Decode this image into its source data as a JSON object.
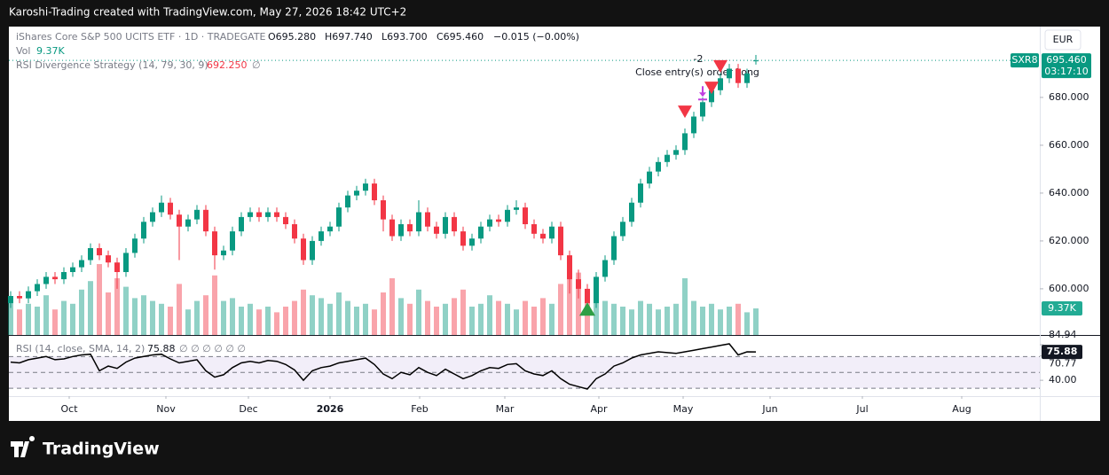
{
  "header": {
    "credit": "Karoshi-Trading created with TradingView.com, May 27, 2026 18:42 UTC+2"
  },
  "chart_data": {
    "type": "candlestick",
    "symbol": "iShares Core S&P 500 UCITS ETF · 1D · TRADEGATE",
    "ohlc_legend": [
      "O695.280",
      "H697.740",
      "L693.700",
      "C695.460",
      "−0.015 (−0.00%)"
    ],
    "volume_legend": {
      "name": "Vol",
      "value": "9.37K"
    },
    "strategy_legend": {
      "name": "RSI Divergence Strategy (14, 79, 30, 9)",
      "value": "692.250",
      "extra": "∅"
    },
    "currency": "EUR",
    "ticker": "SXR8",
    "last_price": {
      "value": 695.46,
      "label": "695.460"
    },
    "countdown": "03:17:10",
    "up_color": "#089981",
    "down_color": "#f23645",
    "candles": [
      [
        594,
        599,
        592,
        597
      ],
      [
        597,
        599,
        594,
        596
      ],
      [
        596,
        601,
        594,
        599
      ],
      [
        599,
        604,
        597,
        602
      ],
      [
        602,
        607,
        600,
        605
      ],
      [
        605,
        607,
        602,
        604
      ],
      [
        604,
        609,
        602,
        607
      ],
      [
        607,
        611,
        605,
        609
      ],
      [
        609,
        614,
        607,
        612
      ],
      [
        612,
        619,
        610,
        617
      ],
      [
        617,
        619,
        612,
        614
      ],
      [
        614,
        616,
        609,
        611
      ],
      [
        611,
        613,
        600,
        607
      ],
      [
        607,
        617,
        605,
        615
      ],
      [
        615,
        623,
        613,
        621
      ],
      [
        621,
        630,
        619,
        628
      ],
      [
        628,
        634,
        626,
        632
      ],
      [
        632,
        639,
        630,
        636
      ],
      [
        636,
        638,
        629,
        631
      ],
      [
        631,
        633,
        612,
        626
      ],
      [
        626,
        631,
        624,
        629
      ],
      [
        629,
        635,
        627,
        633
      ],
      [
        633,
        635,
        622,
        624
      ],
      [
        624,
        626,
        608,
        614
      ],
      [
        614,
        618,
        612,
        616
      ],
      [
        616,
        626,
        614,
        624
      ],
      [
        624,
        632,
        622,
        630
      ],
      [
        630,
        634,
        628,
        632
      ],
      [
        632,
        634,
        628,
        630
      ],
      [
        630,
        634,
        628,
        632
      ],
      [
        632,
        634,
        628,
        630
      ],
      [
        630,
        632,
        625,
        627
      ],
      [
        627,
        629,
        619,
        621
      ],
      [
        621,
        623,
        610,
        612
      ],
      [
        612,
        622,
        610,
        620
      ],
      [
        620,
        626,
        618,
        624
      ],
      [
        624,
        628,
        622,
        626
      ],
      [
        626,
        636,
        624,
        634
      ],
      [
        634,
        641,
        632,
        639
      ],
      [
        639,
        643,
        637,
        641
      ],
      [
        641,
        646,
        639,
        644
      ],
      [
        644,
        646,
        635,
        637
      ],
      [
        637,
        639,
        624,
        629
      ],
      [
        629,
        631,
        620,
        622
      ],
      [
        622,
        629,
        620,
        627
      ],
      [
        627,
        629,
        622,
        624
      ],
      [
        624,
        637,
        622,
        632
      ],
      [
        632,
        634,
        624,
        626
      ],
      [
        626,
        628,
        621,
        623
      ],
      [
        623,
        632,
        621,
        630
      ],
      [
        630,
        632,
        622,
        624
      ],
      [
        624,
        626,
        616,
        618
      ],
      [
        618,
        623,
        616,
        621
      ],
      [
        621,
        628,
        619,
        626
      ],
      [
        626,
        631,
        624,
        629
      ],
      [
        629,
        631,
        626,
        628
      ],
      [
        628,
        635,
        626,
        633
      ],
      [
        633,
        637,
        631,
        634
      ],
      [
        634,
        636,
        625,
        627
      ],
      [
        627,
        629,
        621,
        623
      ],
      [
        623,
        625,
        619,
        621
      ],
      [
        621,
        628,
        619,
        626
      ],
      [
        626,
        628,
        612,
        614
      ],
      [
        614,
        616,
        598,
        604
      ],
      [
        604,
        608,
        596,
        600
      ],
      [
        600,
        602,
        590,
        594
      ],
      [
        594,
        607,
        592,
        605
      ],
      [
        605,
        614,
        603,
        612
      ],
      [
        612,
        624,
        610,
        622
      ],
      [
        622,
        630,
        620,
        628
      ],
      [
        628,
        638,
        626,
        636
      ],
      [
        636,
        646,
        634,
        644
      ],
      [
        644,
        651,
        642,
        649
      ],
      [
        649,
        655,
        647,
        653
      ],
      [
        653,
        658,
        651,
        656
      ],
      [
        656,
        660,
        654,
        658
      ],
      [
        658,
        667,
        656,
        665
      ],
      [
        665,
        674,
        663,
        672
      ],
      [
        672,
        680,
        670,
        678
      ],
      [
        678,
        685,
        676,
        683
      ],
      [
        683,
        690,
        681,
        688
      ],
      [
        688,
        694,
        686,
        692
      ],
      [
        692,
        694,
        684,
        686
      ],
      [
        686,
        692,
        684,
        690
      ],
      [
        695.28,
        697.74,
        693.7,
        695.46
      ]
    ],
    "volume": [
      12000,
      9000,
      11000,
      10000,
      14000,
      9000,
      12000,
      11000,
      16000,
      19000,
      25000,
      15000,
      20000,
      17000,
      13000,
      14000,
      12000,
      11000,
      10000,
      18000,
      9000,
      12000,
      14000,
      21000,
      12000,
      13000,
      10000,
      11000,
      9000,
      10000,
      8000,
      10000,
      12000,
      16000,
      14000,
      13000,
      11000,
      15000,
      12000,
      10000,
      11000,
      9000,
      15000,
      20000,
      13000,
      11000,
      16000,
      12000,
      10000,
      11000,
      13000,
      16000,
      10000,
      11000,
      14000,
      12000,
      11000,
      9000,
      12000,
      10000,
      13000,
      11000,
      18000,
      26000,
      22000,
      16000,
      14000,
      12000,
      11000,
      10000,
      9000,
      12000,
      11000,
      9000,
      10000,
      11000,
      20000,
      12000,
      10000,
      11000,
      9000,
      10000,
      11000,
      8000,
      9370
    ],
    "volume_value_label": "9.37K",
    "volume_ylim": [
      0,
      108750
    ],
    "ylim": [
      580.7,
      709.6
    ],
    "yticks": [
      {
        "value": 600,
        "label": "600.000"
      },
      {
        "value": 620,
        "label": "620.000"
      },
      {
        "value": 640,
        "label": "640.000"
      },
      {
        "value": 660,
        "label": "660.000"
      },
      {
        "value": 680,
        "label": "680.000"
      }
    ],
    "xlim": [
      -0.2,
      116
    ],
    "xticks": [
      {
        "value": 6.6,
        "label": "Oct"
      },
      {
        "value": 17.5,
        "label": "Nov"
      },
      {
        "value": 26.8,
        "label": "Dec"
      },
      {
        "value": 36,
        "label": "2026"
      },
      {
        "value": 46.1,
        "label": "Feb"
      },
      {
        "value": 55.7,
        "label": "Mar"
      },
      {
        "value": 66.3,
        "label": "Apr"
      },
      {
        "value": 75.8,
        "label": "May"
      },
      {
        "value": 85.6,
        "label": "Jun"
      },
      {
        "value": 96,
        "label": "Jul"
      },
      {
        "value": 107.2,
        "label": "Aug"
      }
    ],
    "signals": [
      {
        "index": 65,
        "price": 591,
        "kind": "buy",
        "color": "#2e9e44"
      },
      {
        "index": 76,
        "price": 674,
        "kind": "sell",
        "color": "#f23645"
      },
      {
        "index": 78,
        "price": 681,
        "kind": "exit",
        "color": "#c040e0"
      },
      {
        "index": 79,
        "price": 684,
        "kind": "sell",
        "color": "#f23645"
      },
      {
        "index": 80,
        "price": 693,
        "kind": "sell",
        "color": "#f23645"
      }
    ],
    "annotations": [
      "-2",
      "Close entry(s) order Long"
    ],
    "rsi": {
      "legend": "RSI (14, close, SMA, 14, 2)",
      "value_label": "75.88",
      "extra": "∅ ∅ ∅ ∅ ∅ ∅",
      "color": "#000000",
      "band_color": "#7e57c2",
      "values": [
        63,
        62,
        66,
        68,
        70,
        66,
        67,
        70,
        72,
        73,
        52,
        58,
        55,
        63,
        68,
        70,
        72,
        73,
        67,
        62,
        64,
        66,
        52,
        44,
        47,
        56,
        62,
        64,
        62,
        65,
        64,
        60,
        53,
        40,
        52,
        56,
        58,
        62,
        64,
        66,
        68,
        60,
        48,
        42,
        50,
        47,
        56,
        50,
        46,
        54,
        48,
        42,
        46,
        52,
        56,
        55,
        60,
        61,
        52,
        48,
        46,
        52,
        42,
        35,
        32,
        29,
        42,
        48,
        58,
        62,
        68,
        72,
        74,
        76,
        75,
        74,
        76,
        78,
        80,
        82,
        84,
        86,
        72,
        76,
        75.88
      ],
      "ylim": [
        20,
        95
      ],
      "yticks": [
        84.94,
        70.77,
        {
          "value": 40,
          "label": "40.00"
        }
      ],
      "bands": [
        70,
        50,
        30
      ]
    }
  },
  "footer": {
    "logo": "TradingView"
  }
}
